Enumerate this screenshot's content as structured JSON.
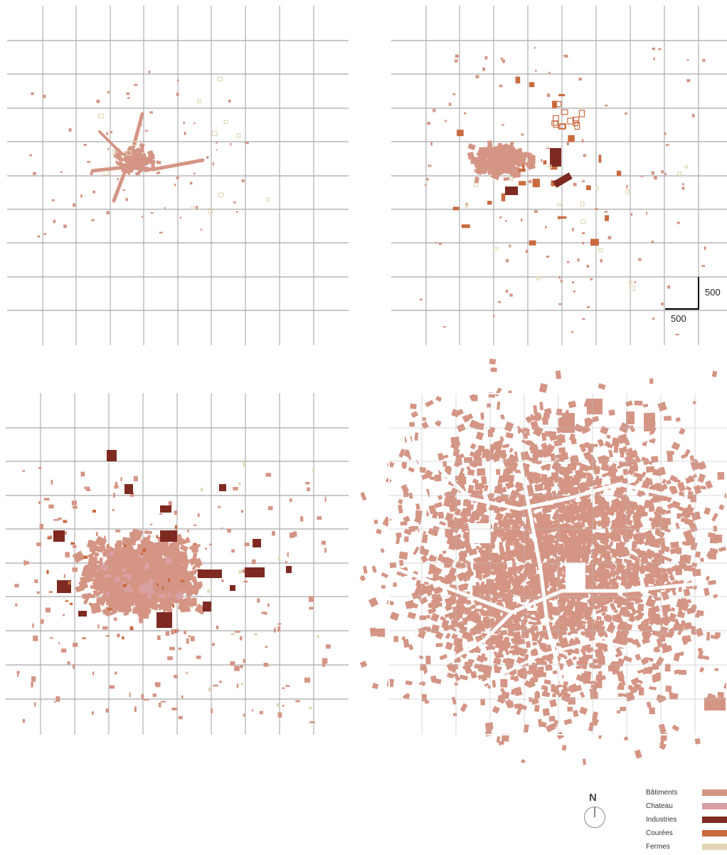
{
  "scale_bar": {
    "horizontal_label": "500",
    "vertical_label": "500"
  },
  "compass": {
    "label": "N",
    "icon": "north-arrow-icon"
  },
  "legend": {
    "items": [
      {
        "label": "Bâtiments",
        "color": "#d49585"
      },
      {
        "label": "Chateau",
        "color": "#d8a0a3"
      },
      {
        "label": "Industries",
        "color": "#7e2a22"
      },
      {
        "label": "Courées",
        "color": "#c96a3f"
      },
      {
        "label": "Fermes",
        "color": "#e3d8b6"
      }
    ]
  },
  "maps": [
    {
      "name": "map-period-1",
      "density": "sparse"
    },
    {
      "name": "map-period-2",
      "density": "scattered"
    },
    {
      "name": "map-period-3",
      "density": "dense-core"
    },
    {
      "name": "map-period-4",
      "density": "fully-built"
    }
  ]
}
